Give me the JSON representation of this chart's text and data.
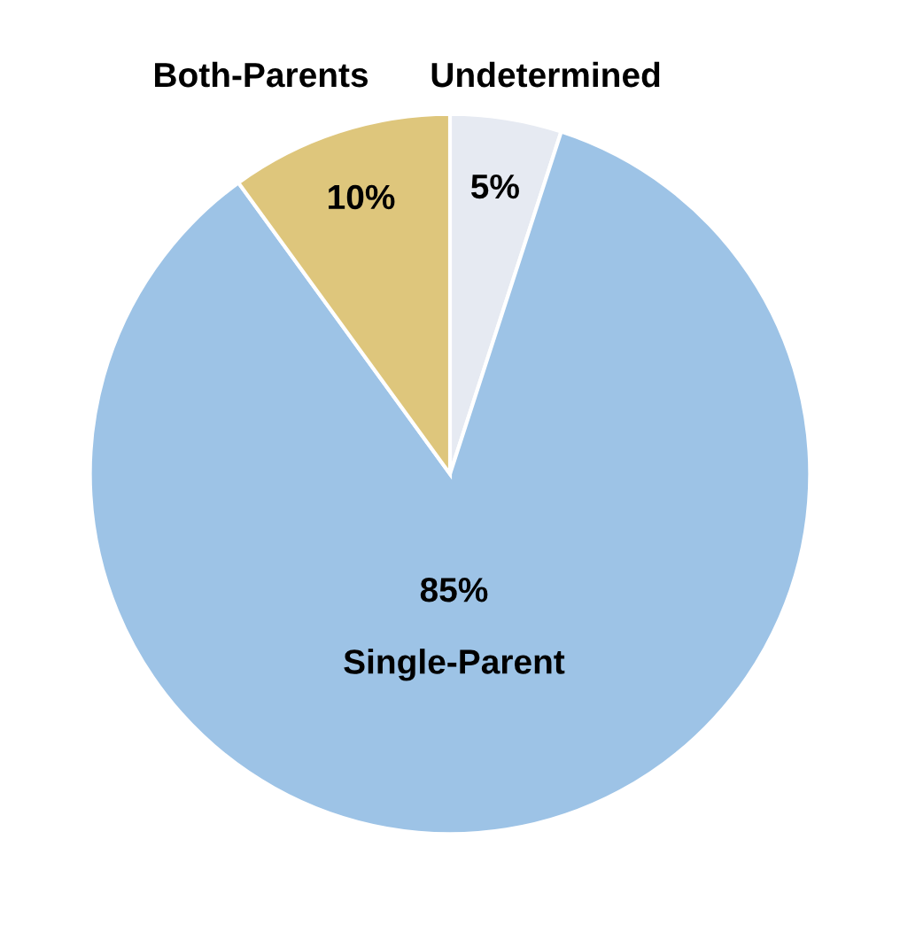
{
  "chart_data": {
    "type": "pie",
    "categories": [
      "Undetermined",
      "Single-Parent",
      "Both-Parents"
    ],
    "values": [
      5,
      85,
      10
    ],
    "value_labels": [
      "5%",
      "85%",
      "10%"
    ],
    "colors": [
      "#e6eaf2",
      "#9dc3e6",
      "#dec67c"
    ]
  }
}
